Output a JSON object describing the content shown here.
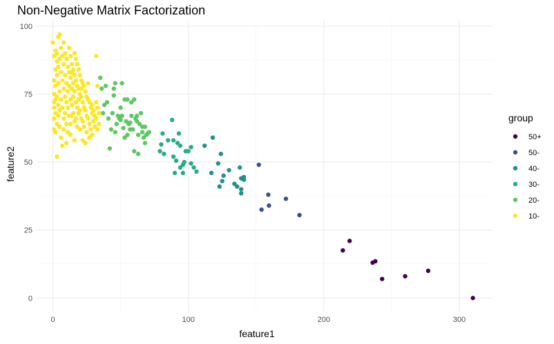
{
  "chart_data": {
    "type": "scatter",
    "title": "Non-Negative Matrix Factorization",
    "xlabel": "feature1",
    "ylabel": "feature2",
    "xlim": [
      -12,
      325
    ],
    "ylim": [
      -5,
      102
    ],
    "x_ticks": [
      0,
      100,
      200,
      300
    ],
    "y_ticks": [
      0,
      25,
      50,
      75,
      100
    ],
    "grid": true,
    "legend": {
      "title": "group",
      "position": "right",
      "entries": [
        {
          "label": "50+",
          "color": "#440154"
        },
        {
          "label": "50-",
          "color": "#3B528B"
        },
        {
          "label": "40-",
          "color": "#21908C"
        },
        {
          "label": "30-",
          "color": "#27AD81"
        },
        {
          "label": "20-",
          "color": "#5DC863"
        },
        {
          "label": "10-",
          "color": "#FDE725"
        }
      ]
    },
    "series": [
      {
        "name": "50+",
        "color": "#440154",
        "points": [
          [
            214,
            17.5
          ],
          [
            219,
            21
          ],
          [
            236,
            13
          ],
          [
            238,
            13.5
          ],
          [
            243,
            7
          ],
          [
            260,
            8
          ],
          [
            277,
            10
          ],
          [
            310,
            0
          ]
        ]
      },
      {
        "name": "50-",
        "color": "#3B528B",
        "points": [
          [
            152,
            49
          ],
          [
            159,
            38
          ],
          [
            159.5,
            34
          ],
          [
            154,
            32.5
          ],
          [
            172,
            36.5
          ],
          [
            182,
            30.5
          ]
        ]
      },
      {
        "name": "40-",
        "color": "#21908C",
        "points": [
          [
            112,
            56
          ],
          [
            118,
            59
          ],
          [
            122,
            49.5
          ],
          [
            124,
            53
          ],
          [
            126,
            45
          ],
          [
            125,
            43
          ],
          [
            123,
            41
          ],
          [
            130,
            47
          ],
          [
            134,
            42
          ],
          [
            136,
            41
          ],
          [
            138,
            48
          ],
          [
            139,
            44
          ],
          [
            139,
            38.5
          ],
          [
            140,
            44
          ],
          [
            141,
            44.5
          ],
          [
            141,
            43.5
          ],
          [
            139,
            40
          ],
          [
            117,
            46
          ]
        ]
      },
      {
        "name": "30-",
        "color": "#27AD81",
        "points": [
          [
            80,
            56.5
          ],
          [
            81,
            60.5
          ],
          [
            82,
            53
          ],
          [
            88,
            65.5
          ],
          [
            89,
            52
          ],
          [
            89,
            58
          ],
          [
            90,
            46
          ],
          [
            91,
            50.5
          ],
          [
            92,
            57
          ],
          [
            93,
            60.5
          ],
          [
            94,
            56
          ],
          [
            94,
            48
          ],
          [
            96,
            49
          ],
          [
            96,
            46
          ],
          [
            97,
            50
          ],
          [
            98,
            54
          ],
          [
            102,
            55.5
          ],
          [
            102,
            49.5
          ],
          [
            104,
            48
          ],
          [
            106,
            46.5
          ],
          [
            79,
            54
          ],
          [
            85,
            58
          ],
          [
            100,
            54
          ]
        ]
      },
      {
        "name": "20-",
        "color": "#5DC863",
        "points": [
          [
            35,
            81
          ],
          [
            36,
            77
          ],
          [
            37,
            68
          ],
          [
            38,
            71
          ],
          [
            40,
            72
          ],
          [
            41,
            66
          ],
          [
            42,
            55
          ],
          [
            43,
            62
          ],
          [
            44,
            68
          ],
          [
            45,
            74.5
          ],
          [
            46,
            79
          ],
          [
            46,
            61
          ],
          [
            47,
            64
          ],
          [
            48,
            67
          ],
          [
            50,
            65.5
          ],
          [
            50,
            70
          ],
          [
            51,
            67
          ],
          [
            51,
            79
          ],
          [
            52,
            62.5
          ],
          [
            53,
            73
          ],
          [
            53,
            59
          ],
          [
            54,
            65
          ],
          [
            55,
            73
          ],
          [
            55,
            60
          ],
          [
            56,
            64
          ],
          [
            57,
            64.5
          ],
          [
            58,
            67
          ],
          [
            58,
            72
          ],
          [
            59,
            62
          ],
          [
            60,
            73
          ],
          [
            60,
            54
          ],
          [
            61,
            66
          ],
          [
            62,
            65
          ],
          [
            63,
            53
          ],
          [
            63,
            60
          ],
          [
            64,
            64
          ],
          [
            65,
            68
          ],
          [
            66,
            61
          ],
          [
            67,
            59
          ],
          [
            68,
            63
          ],
          [
            68,
            57
          ],
          [
            69,
            60
          ],
          [
            70,
            60.5
          ],
          [
            71,
            61
          ],
          [
            45,
            77
          ],
          [
            39,
            78
          ],
          [
            49,
            66
          ],
          [
            57,
            62
          ],
          [
            62,
            67
          ],
          [
            66,
            63
          ]
        ]
      },
      {
        "name": "10-",
        "color": "#FDE725",
        "points": [
          [
            0,
            94
          ],
          [
            1,
            89
          ],
          [
            1,
            80
          ],
          [
            1,
            75
          ],
          [
            1,
            72
          ],
          [
            1,
            70
          ],
          [
            1,
            66
          ],
          [
            1,
            62
          ],
          [
            2,
            91
          ],
          [
            2,
            84
          ],
          [
            2,
            78
          ],
          [
            2,
            68
          ],
          [
            2,
            61
          ],
          [
            3,
            87
          ],
          [
            3,
            82
          ],
          [
            3,
            74
          ],
          [
            3,
            64
          ],
          [
            3,
            52
          ],
          [
            4,
            96
          ],
          [
            4,
            85
          ],
          [
            4,
            79
          ],
          [
            4,
            71
          ],
          [
            4,
            67
          ],
          [
            5,
            97
          ],
          [
            5,
            88
          ],
          [
            5,
            76
          ],
          [
            5,
            69
          ],
          [
            5,
            63
          ],
          [
            6,
            92
          ],
          [
            6,
            83
          ],
          [
            6,
            73
          ],
          [
            6,
            59
          ],
          [
            7,
            89
          ],
          [
            7,
            80
          ],
          [
            7,
            70
          ],
          [
            7,
            56
          ],
          [
            8,
            94
          ],
          [
            8,
            86
          ],
          [
            8,
            77
          ],
          [
            8,
            66
          ],
          [
            8,
            62
          ],
          [
            9,
            90
          ],
          [
            9,
            82
          ],
          [
            9,
            74
          ],
          [
            9,
            68
          ],
          [
            10,
            88
          ],
          [
            10,
            79
          ],
          [
            10,
            72
          ],
          [
            10,
            64
          ],
          [
            10,
            57
          ],
          [
            11,
            85
          ],
          [
            11,
            76
          ],
          [
            11,
            70
          ],
          [
            11,
            61
          ],
          [
            12,
            92
          ],
          [
            12,
            83
          ],
          [
            12,
            78
          ],
          [
            12,
            67
          ],
          [
            13,
            89
          ],
          [
            13,
            81
          ],
          [
            13,
            73
          ],
          [
            13,
            64
          ],
          [
            13,
            60
          ],
          [
            14,
            86
          ],
          [
            14,
            77
          ],
          [
            14,
            71
          ],
          [
            14,
            67
          ],
          [
            15,
            84
          ],
          [
            15,
            79
          ],
          [
            15,
            74
          ],
          [
            15,
            68
          ],
          [
            16,
            90
          ],
          [
            16,
            82
          ],
          [
            16,
            76
          ],
          [
            16,
            65
          ],
          [
            16,
            58
          ],
          [
            17,
            88
          ],
          [
            17,
            80
          ],
          [
            17,
            72
          ],
          [
            17,
            66
          ],
          [
            18,
            86
          ],
          [
            18,
            78
          ],
          [
            18,
            70
          ],
          [
            18,
            63
          ],
          [
            19,
            84
          ],
          [
            19,
            77
          ],
          [
            19,
            73
          ],
          [
            19,
            68
          ],
          [
            20,
            82
          ],
          [
            20,
            75
          ],
          [
            20,
            69
          ],
          [
            20,
            62
          ],
          [
            21,
            80
          ],
          [
            21,
            74
          ],
          [
            21,
            66
          ],
          [
            22,
            79
          ],
          [
            22,
            72
          ],
          [
            22,
            65
          ],
          [
            22,
            58
          ],
          [
            23,
            78
          ],
          [
            23,
            70
          ],
          [
            23,
            63
          ],
          [
            24,
            76
          ],
          [
            24,
            69
          ],
          [
            24,
            57
          ],
          [
            25,
            74
          ],
          [
            25,
            67
          ],
          [
            25,
            61
          ],
          [
            26,
            73
          ],
          [
            26,
            66
          ],
          [
            27,
            72
          ],
          [
            27,
            64
          ],
          [
            27,
            59
          ],
          [
            28,
            70
          ],
          [
            28,
            62
          ],
          [
            29,
            71
          ],
          [
            29,
            68
          ],
          [
            29,
            60
          ],
          [
            30,
            69
          ],
          [
            30,
            65
          ],
          [
            31,
            67
          ],
          [
            31,
            63
          ],
          [
            32,
            89
          ],
          [
            32,
            72
          ],
          [
            32,
            66
          ],
          [
            33,
            70
          ],
          [
            33,
            62
          ],
          [
            34,
            68
          ],
          [
            34,
            64
          ],
          [
            33,
            78
          ],
          [
            26,
            79
          ],
          [
            21,
            77
          ],
          [
            14,
            83
          ],
          [
            3,
            90
          ],
          [
            2,
            73
          ]
        ]
      }
    ]
  }
}
